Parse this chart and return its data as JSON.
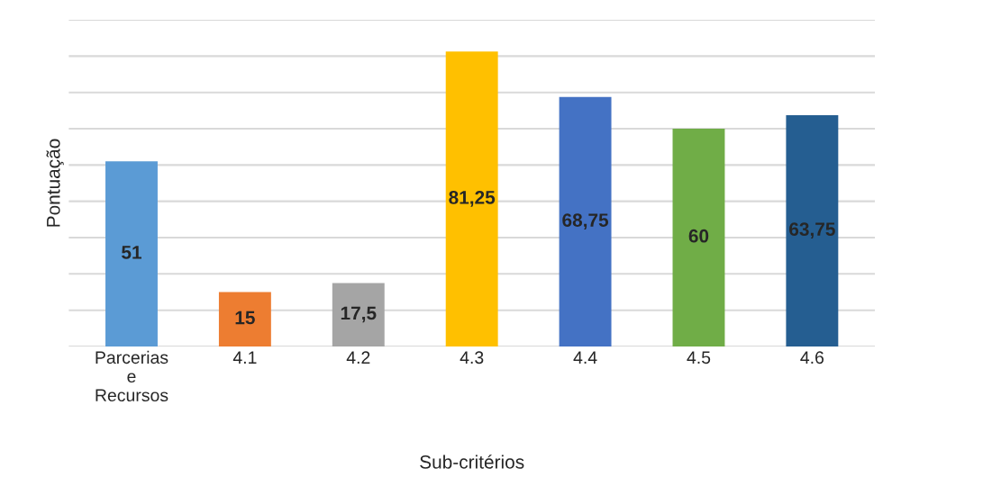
{
  "chart_data": {
    "type": "bar",
    "categories": [
      "Parcerias\ne\nRecursos",
      "4.1",
      "4.2",
      "4.3",
      "4.4",
      "4.5",
      "4.6"
    ],
    "values": [
      51,
      15,
      17.5,
      81.25,
      68.75,
      60,
      63.75
    ],
    "value_labels": [
      "51",
      "15",
      "17,5",
      "81,25",
      "68,75",
      "60",
      "63,75"
    ],
    "colors": [
      "#5b9bd5",
      "#ed7d31",
      "#a5a5a5",
      "#ffc000",
      "#4472c4",
      "#70ad47",
      "#255e91"
    ],
    "xlabel": "Sub-critérios",
    "ylabel": "Pontuação",
    "ylim": [
      0,
      90
    ],
    "yticks": [
      {
        "value": 0,
        "label": null
      },
      {
        "value": 10,
        "label": null
      },
      {
        "value": 20,
        "label": null
      },
      {
        "value": 30,
        "label": null
      },
      {
        "value": 40,
        "label": null
      },
      {
        "value": 50,
        "label": null
      },
      {
        "value": 60,
        "label": null
      },
      {
        "value": 70,
        "label": null
      },
      {
        "value": 80,
        "label": null
      },
      {
        "value": 90,
        "label": null
      }
    ],
    "grid": "y",
    "tick_labels": "x"
  }
}
